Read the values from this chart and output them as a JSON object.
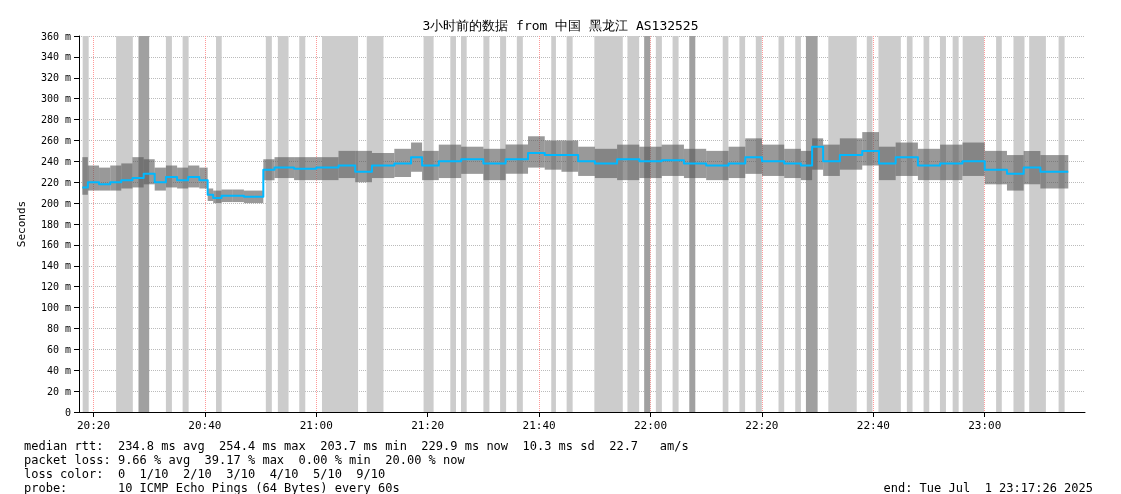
{
  "chart_data": {
    "type": "step",
    "title": "3小时前的数据 from 中国 黑龙江 AS132525",
    "ylabel": "Seconds",
    "xlim": [
      20.29,
      23.3
    ],
    "xticks": [
      {
        "value": 20.3333,
        "label": "20:20"
      },
      {
        "value": 20.6667,
        "label": "20:40"
      },
      {
        "value": 21,
        "label": "21:00"
      },
      {
        "value": 21.3333,
        "label": "21:20"
      },
      {
        "value": 21.6667,
        "label": "21:40"
      },
      {
        "value": 22,
        "label": "22:00"
      },
      {
        "value": 22.3333,
        "label": "22:20"
      },
      {
        "value": 22.6667,
        "label": "22:40"
      },
      {
        "value": 23,
        "label": "23:00"
      }
    ],
    "ylim": [
      0,
      360
    ],
    "yticks": [
      0,
      {
        "value": 20,
        "label": "20 m"
      },
      {
        "value": 40,
        "label": "40 m"
      },
      {
        "value": 60,
        "label": "60 m"
      },
      {
        "value": 80,
        "label": "80 m"
      },
      {
        "value": 100,
        "label": "100 m"
      },
      {
        "value": 120,
        "label": "120 m"
      },
      {
        "value": 140,
        "label": "140 m"
      },
      {
        "value": 160,
        "label": "160 m"
      },
      {
        "value": 180,
        "label": "180 m"
      },
      {
        "value": 200,
        "label": "200 m"
      },
      {
        "value": 220,
        "label": "220 m"
      },
      {
        "value": 240,
        "label": "240 m"
      },
      {
        "value": 260,
        "label": "260 m"
      },
      {
        "value": 280,
        "label": "280 m"
      },
      {
        "value": 300,
        "label": "300 m"
      },
      {
        "value": 320,
        "label": "320 m"
      },
      {
        "value": 340,
        "label": "340 m"
      },
      {
        "value": 360,
        "label": "360 m"
      }
    ],
    "grid": true,
    "marker": "none",
    "series": [
      {
        "color": "#00b8ff",
        "x": [
          20.3,
          20.333,
          20.367,
          20.4,
          20.433,
          20.467,
          20.5,
          20.533,
          20.567,
          20.6,
          20.633,
          20.667,
          20.683,
          20.7,
          20.733,
          20.767,
          20.8,
          20.833,
          20.85,
          20.9,
          20.967,
          21.033,
          21.1,
          21.133,
          21.2,
          21.267,
          21.3,
          21.333,
          21.4,
          21.467,
          21.533,
          21.6,
          21.667,
          21.7,
          21.767,
          21.8,
          21.867,
          21.933,
          22,
          22.067,
          22.133,
          22.2,
          22.267,
          22.3,
          22.367,
          22.433,
          22.467,
          22.5,
          22.533,
          22.6,
          22.667,
          22.7,
          22.767,
          22.833,
          22.9,
          22.967,
          23.033,
          23.1,
          23.133,
          23.2,
          23.25
        ],
        "values": [
          215,
          220,
          218,
          220,
          222,
          224,
          228,
          220,
          225,
          222,
          225,
          222,
          208,
          205,
          207,
          207,
          206,
          206,
          232,
          234,
          233,
          234,
          236,
          230,
          236,
          238,
          244,
          236,
          240,
          242,
          238,
          242,
          248,
          246,
          246,
          240,
          238,
          242,
          240,
          241,
          238,
          236,
          238,
          244,
          240,
          238,
          236,
          254,
          240,
          246,
          250,
          238,
          244,
          236,
          238,
          240,
          232,
          228,
          234,
          230,
          230
        ],
        "lower": [
          208,
          212,
          212,
          212,
          214,
          215,
          218,
          212,
          215,
          214,
          215,
          214,
          202,
          200,
          201,
          201,
          200,
          200,
          222,
          224,
          222,
          222,
          224,
          220,
          224,
          225,
          230,
          222,
          224,
          228,
          222,
          228,
          234,
          232,
          230,
          226,
          224,
          222,
          224,
          226,
          224,
          222,
          224,
          228,
          226,
          224,
          222,
          232,
          226,
          232,
          236,
          222,
          226,
          222,
          222,
          226,
          218,
          212,
          218,
          214,
          214
        ],
        "upper": [
          244,
          236,
          234,
          236,
          238,
          244,
          242,
          234,
          236,
          234,
          236,
          234,
          214,
          212,
          213,
          213,
          212,
          212,
          242,
          244,
          244,
          244,
          250,
          250,
          248,
          252,
          258,
          250,
          256,
          254,
          252,
          256,
          264,
          260,
          260,
          254,
          252,
          256,
          254,
          256,
          252,
          250,
          254,
          262,
          256,
          252,
          250,
          262,
          256,
          262,
          268,
          254,
          258,
          252,
          256,
          258,
          250,
          246,
          250,
          246,
          246
        ]
      }
    ],
    "bands": [
      {
        "axis": "x",
        "from": 20.301,
        "to": 20.319,
        "color": "#cccccc"
      },
      {
        "axis": "x",
        "from": 20.401,
        "to": 20.451,
        "color": "#cccccc"
      },
      {
        "axis": "x",
        "from": 20.468,
        "to": 20.5,
        "color": "#a0a0a0"
      },
      {
        "axis": "x",
        "from": 20.55,
        "to": 20.568,
        "color": "#cccccc"
      },
      {
        "axis": "x",
        "from": 20.6,
        "to": 20.618,
        "color": "#cccccc"
      },
      {
        "axis": "x",
        "from": 20.7,
        "to": 20.717,
        "color": "#cccccc"
      },
      {
        "axis": "x",
        "from": 20.849,
        "to": 20.867,
        "color": "#cccccc"
      },
      {
        "axis": "x",
        "from": 20.885,
        "to": 20.917,
        "color": "#cccccc"
      },
      {
        "axis": "x",
        "from": 20.949,
        "to": 20.967,
        "color": "#cccccc"
      },
      {
        "axis": "x",
        "from": 21.017,
        "to": 21.125,
        "color": "#cccccc"
      },
      {
        "axis": "x",
        "from": 21.151,
        "to": 21.201,
        "color": "#cccccc"
      },
      {
        "axis": "x",
        "from": 21.321,
        "to": 21.351,
        "color": "#cccccc"
      },
      {
        "axis": "x",
        "from": 21.401,
        "to": 21.418,
        "color": "#cccccc"
      },
      {
        "axis": "x",
        "from": 21.433,
        "to": 21.45,
        "color": "#cccccc"
      },
      {
        "axis": "x",
        "from": 21.5,
        "to": 21.518,
        "color": "#cccccc"
      },
      {
        "axis": "x",
        "from": 21.55,
        "to": 21.568,
        "color": "#cccccc"
      },
      {
        "axis": "x",
        "from": 21.6,
        "to": 21.618,
        "color": "#cccccc"
      },
      {
        "axis": "x",
        "from": 21.703,
        "to": 21.717,
        "color": "#cccccc"
      },
      {
        "axis": "x",
        "from": 21.749,
        "to": 21.767,
        "color": "#cccccc"
      },
      {
        "axis": "x",
        "from": 21.832,
        "to": 21.917,
        "color": "#cccccc"
      },
      {
        "axis": "x",
        "from": 21.931,
        "to": 21.966,
        "color": "#cccccc"
      },
      {
        "axis": "x",
        "from": 21.981,
        "to": 21.999,
        "color": "#a0a0a0"
      },
      {
        "axis": "x",
        "from": 22.016,
        "to": 22.034,
        "color": "#cccccc"
      },
      {
        "axis": "x",
        "from": 22.066,
        "to": 22.084,
        "color": "#cccccc"
      },
      {
        "axis": "x",
        "from": 22.116,
        "to": 22.134,
        "color": "#a0a0a0"
      },
      {
        "axis": "x",
        "from": 22.216,
        "to": 22.233,
        "color": "#cccccc"
      },
      {
        "axis": "x",
        "from": 22.266,
        "to": 22.283,
        "color": "#cccccc"
      },
      {
        "axis": "x",
        "from": 22.315,
        "to": 22.333,
        "color": "#cccccc"
      },
      {
        "axis": "x",
        "from": 22.383,
        "to": 22.4,
        "color": "#cccccc"
      },
      {
        "axis": "x",
        "from": 22.433,
        "to": 22.45,
        "color": "#cccccc"
      },
      {
        "axis": "x",
        "from": 22.465,
        "to": 22.5,
        "color": "#a0a0a0"
      },
      {
        "axis": "x",
        "from": 22.532,
        "to": 22.617,
        "color": "#cccccc"
      },
      {
        "axis": "x",
        "from": 22.647,
        "to": 22.664,
        "color": "#cccccc"
      },
      {
        "axis": "x",
        "from": 22.682,
        "to": 22.749,
        "color": "#cccccc"
      },
      {
        "axis": "x",
        "from": 22.767,
        "to": 22.784,
        "color": "#cccccc"
      },
      {
        "axis": "x",
        "from": 22.817,
        "to": 22.834,
        "color": "#cccccc"
      },
      {
        "axis": "x",
        "from": 22.866,
        "to": 22.884,
        "color": "#cccccc"
      },
      {
        "axis": "x",
        "from": 22.904,
        "to": 22.922,
        "color": "#cccccc"
      },
      {
        "axis": "x",
        "from": 22.934,
        "to": 22.998,
        "color": "#cccccc"
      },
      {
        "axis": "x",
        "from": 23.034,
        "to": 23.051,
        "color": "#cccccc"
      },
      {
        "axis": "x",
        "from": 23.086,
        "to": 23.119,
        "color": "#cccccc"
      },
      {
        "axis": "x",
        "from": 23.133,
        "to": 23.183,
        "color": "#cccccc"
      },
      {
        "axis": "x",
        "from": 23.221,
        "to": 23.239,
        "color": "#cccccc"
      }
    ],
    "annotations": [
      "median rtt:  234.8 ms avg  254.4 ms max  203.7 ms min  229.9 ms now  10.3 ms sd  22.7   am/s",
      "packet loss: 9.66 % avg  39.17 % max  0.00 % min  20.00 % now",
      "loss color:  0  1/10  2/10  3/10  4/10  5/10  9/10",
      "probe:       10 ICMP Echo Pings (64 Bytes) every 60s",
      "end: Tue Jul  1 23:17:26 2025"
    ]
  }
}
